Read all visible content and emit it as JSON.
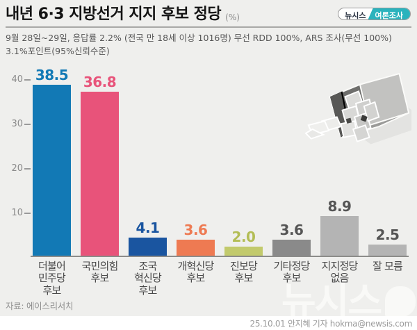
{
  "header": {
    "title": "내년 6·3 지방선거 지지 후보 정당",
    "unit": "(%)",
    "badge": {
      "brand": "뉴시스",
      "label": "여론조사"
    },
    "subtitle_line1": "9월 28일~29일, 응답률 2.2% (전국 만 18세 이상 1016명) 무선 RDD 100%, ARS 조사(무선 100%)",
    "subtitle_line2": "3.1%포인트(95%신뢰수준)"
  },
  "chart_data": {
    "type": "bar",
    "title": "내년 6·3 지방선거 지지 후보 정당 (%)",
    "categories": [
      "더불어\n민주당\n후보",
      "국민의힘\n후보",
      "조국\n혁신당\n후보",
      "개혁신당\n후보",
      "진보당\n후보",
      "기타정당\n후보",
      "지지정당\n없음",
      "잘 모름"
    ],
    "values": [
      38.5,
      36.8,
      4.1,
      3.6,
      2.0,
      3.6,
      8.9,
      2.5
    ],
    "value_labels": [
      "38.5",
      "36.8",
      "4.1",
      "3.6",
      "2.0",
      "3.6",
      "8.9",
      "2.5"
    ],
    "bar_colors": [
      "#1279b5",
      "#e8537a",
      "#1a55a0",
      "#ee7a52",
      "#c2ca6c",
      "#8a8a8a",
      "#b4b4b4",
      "#b4b4b4"
    ],
    "label_colors": [
      "#1279b5",
      "#e8537a",
      "#1a55a0",
      "#ee7a52",
      "#b3bd55",
      "#555555",
      "#555555",
      "#555555"
    ],
    "xlabel": "",
    "ylabel": "",
    "ylim": [
      0,
      40
    ],
    "yticks": [
      10,
      20,
      30,
      40
    ],
    "grid": false,
    "legend": "none"
  },
  "footer": {
    "source": "자료: 에이스리서치",
    "watermark": "뉴시스",
    "credit": "25.10.01 안지혜 기자 hokma@newsis.com"
  },
  "colors": {
    "background": "#efefed",
    "accent_teal": "#2bb3bd",
    "axis": "#8c8c8a",
    "title_text": "#141414",
    "subtitle_text": "#565656"
  }
}
